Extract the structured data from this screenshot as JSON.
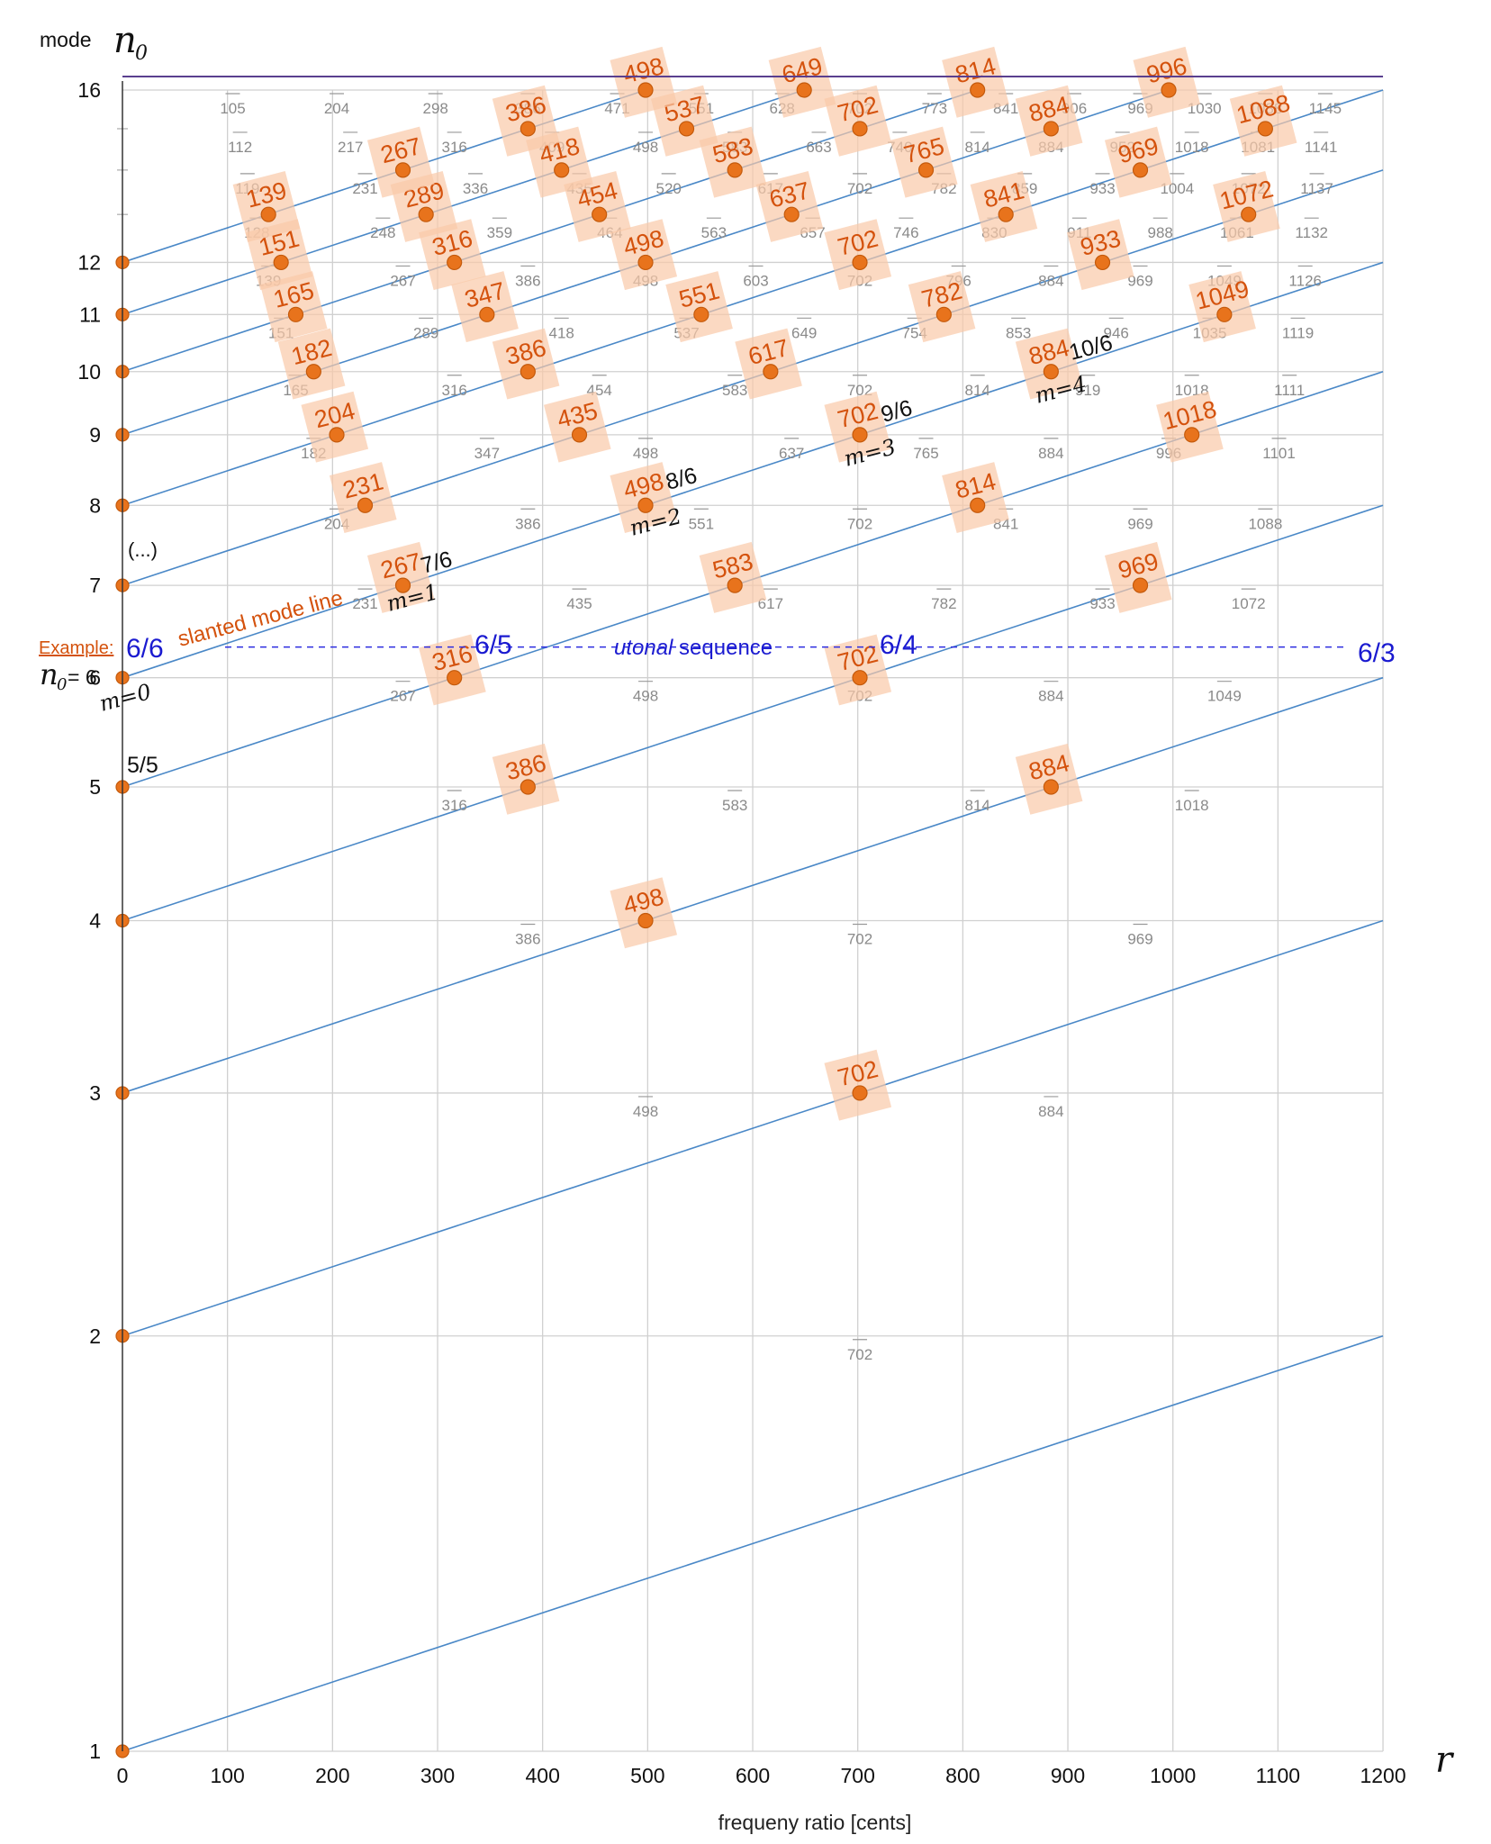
{
  "chart_data": {
    "type": "scatter",
    "title": "",
    "xlabel": "frequeny ratio [cents]",
    "x_symbol": "r",
    "ylabel": "mode",
    "y_symbol": "n",
    "y_symbol_sub": "0",
    "xlim": [
      0,
      1200
    ],
    "ylim_modes": [
      1,
      16
    ],
    "scale": "log2 (mode)",
    "x_ticks": [
      0,
      100,
      200,
      300,
      400,
      500,
      600,
      700,
      800,
      900,
      1000,
      1100,
      1200
    ],
    "y_ticks": [
      1,
      2,
      3,
      4,
      5,
      6,
      7,
      8,
      9,
      10,
      11,
      12,
      16
    ],
    "ellipsis": "(...)",
    "grid": true,
    "highlight_points": [
      {
        "mode": 3,
        "cents": 702
      },
      {
        "mode": 4,
        "cents": 498
      },
      {
        "mode": 5,
        "cents": 386
      },
      {
        "mode": 5,
        "cents": 884
      },
      {
        "mode": 6,
        "cents": 316
      },
      {
        "mode": 6,
        "cents": 702
      },
      {
        "mode": 7,
        "cents": 267
      },
      {
        "mode": 7,
        "cents": 583
      },
      {
        "mode": 7,
        "cents": 969
      },
      {
        "mode": 8,
        "cents": 231
      },
      {
        "mode": 8,
        "cents": 498
      },
      {
        "mode": 8,
        "cents": 814
      },
      {
        "mode": 9,
        "cents": 204
      },
      {
        "mode": 9,
        "cents": 435
      },
      {
        "mode": 9,
        "cents": 702
      },
      {
        "mode": 9,
        "cents": 1018
      },
      {
        "mode": 10,
        "cents": 182
      },
      {
        "mode": 10,
        "cents": 386
      },
      {
        "mode": 10,
        "cents": 617
      },
      {
        "mode": 10,
        "cents": 884
      },
      {
        "mode": 11,
        "cents": 165
      },
      {
        "mode": 11,
        "cents": 347
      },
      {
        "mode": 11,
        "cents": 551
      },
      {
        "mode": 11,
        "cents": 782
      },
      {
        "mode": 11,
        "cents": 1049
      },
      {
        "mode": 12,
        "cents": 151
      },
      {
        "mode": 12,
        "cents": 316
      },
      {
        "mode": 12,
        "cents": 498
      },
      {
        "mode": 12,
        "cents": 702
      },
      {
        "mode": 12,
        "cents": 933
      },
      {
        "mode": 13,
        "cents": 139
      },
      {
        "mode": 13,
        "cents": 289
      },
      {
        "mode": 13,
        "cents": 454
      },
      {
        "mode": 13,
        "cents": 637
      },
      {
        "mode": 13,
        "cents": 841
      },
      {
        "mode": 13,
        "cents": 1072
      },
      {
        "mode": 14,
        "cents": 267
      },
      {
        "mode": 14,
        "cents": 418
      },
      {
        "mode": 14,
        "cents": 583
      },
      {
        "mode": 14,
        "cents": 765
      },
      {
        "mode": 14,
        "cents": 969
      },
      {
        "mode": 15,
        "cents": 386
      },
      {
        "mode": 15,
        "cents": 537
      },
      {
        "mode": 15,
        "cents": 702
      },
      {
        "mode": 15,
        "cents": 884
      },
      {
        "mode": 15,
        "cents": 1088
      },
      {
        "mode": 16,
        "cents": 498
      },
      {
        "mode": 16,
        "cents": 649
      },
      {
        "mode": 16,
        "cents": 814
      },
      {
        "mode": 16,
        "cents": 996
      }
    ],
    "sub_labels": [
      {
        "mode": 2,
        "cents": [
          702
        ]
      },
      {
        "mode": 3,
        "cents": [
          498,
          884
        ]
      },
      {
        "mode": 4,
        "cents": [
          386,
          702,
          969
        ]
      },
      {
        "mode": 5,
        "cents": [
          316,
          583,
          814,
          1018
        ]
      },
      {
        "mode": 6,
        "cents": [
          267,
          498,
          702,
          884,
          1049
        ]
      },
      {
        "mode": 7,
        "cents": [
          231,
          435,
          617,
          782,
          933,
          1072
        ]
      },
      {
        "mode": 8,
        "cents": [
          204,
          386,
          551,
          702,
          841,
          969,
          1088
        ]
      },
      {
        "mode": 9,
        "cents": [
          182,
          347,
          498,
          637,
          765,
          884,
          996,
          1101
        ]
      },
      {
        "mode": 10,
        "cents": [
          165,
          316,
          454,
          583,
          702,
          814,
          919,
          1018,
          1111
        ]
      },
      {
        "mode": 11,
        "cents": [
          151,
          289,
          418,
          537,
          649,
          754,
          853,
          946,
          1035,
          1119
        ]
      },
      {
        "mode": 12,
        "cents": [
          139,
          267,
          386,
          498,
          603,
          702,
          796,
          884,
          969,
          1049,
          1126
        ]
      },
      {
        "mode": 13,
        "cents": [
          128,
          248,
          359,
          464,
          563,
          657,
          746,
          830,
          911,
          988,
          1061,
          1132
        ]
      },
      {
        "mode": 14,
        "cents": [
          119,
          231,
          336,
          435,
          520,
          617,
          702,
          782,
          859,
          933,
          1004,
          1072,
          1137
        ]
      },
      {
        "mode": 15,
        "cents": [
          112,
          217,
          316,
          409,
          498,
          583,
          663,
          740,
          814,
          884,
          952,
          1018,
          1081,
          1141
        ]
      },
      {
        "mode": 16,
        "cents": [
          105,
          204,
          298,
          386,
          471,
          551,
          628,
          702,
          773,
          841,
          906,
          969,
          1030,
          1088,
          1145
        ]
      }
    ],
    "annotations": {
      "example": "Example:",
      "n0_eq": "= 6",
      "slanted": "slanted mode line",
      "utonal_word": "utonal",
      "utonal_rest": " sequence",
      "frac_66": "6/6",
      "frac_65": "6/5",
      "frac_64": "6/4",
      "frac_63": "6/3",
      "frac_55": "5/5",
      "frac_76": "7/6",
      "frac_86": "8/6",
      "frac_96": "9/6",
      "frac_106": "10/6",
      "m0": "m=0",
      "m1": "m=1",
      "m2": "m=2",
      "m3": "m=3",
      "m4": "m=4"
    },
    "colors": {
      "highlight_point": "#e8731c",
      "highlight_label": "#d4520d",
      "mode_line": "#4a88c7",
      "top_line": "#5a3f8f",
      "utonal": "#1a1ad0"
    }
  }
}
